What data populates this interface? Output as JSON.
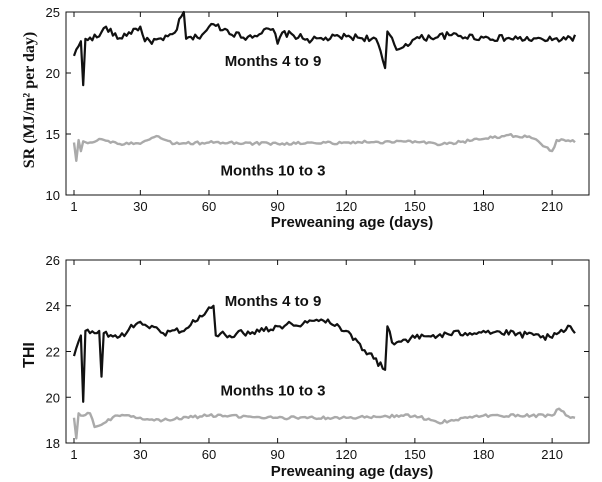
{
  "chart_data": [
    {
      "type": "line",
      "xlabel": "Preweaning age (days)",
      "ylabel": "SR (MJ/m² per day)",
      "xlim": [
        1,
        220
      ],
      "ylim": [
        10,
        25
      ],
      "xticks": [
        1,
        30,
        60,
        90,
        120,
        150,
        180,
        210
      ],
      "yticks": [
        10,
        15,
        20,
        25
      ],
      "grid": false,
      "annotations": [
        {
          "text": "Months 4 to 9",
          "x": 88,
          "y": 21.0
        },
        {
          "text": "Months 10 to 3",
          "x": 88,
          "y": 12.0
        }
      ],
      "series": [
        {
          "name": "Months 4 to 9",
          "color": "#111111",
          "base": 22.8,
          "x": [
            1,
            4,
            5,
            6,
            8,
            12,
            15,
            20,
            30,
            32,
            40,
            45,
            49,
            50,
            55,
            62,
            75,
            88,
            90,
            92,
            105,
            120,
            133,
            137,
            138,
            142,
            150,
            165,
            180,
            195,
            210,
            218
          ],
          "values": [
            21.4,
            22.6,
            19.0,
            22.8,
            22.9,
            23.0,
            23.8,
            22.8,
            23.8,
            22.6,
            22.7,
            23.3,
            25.0,
            22.8,
            22.9,
            24.0,
            22.9,
            23.6,
            22.4,
            23.3,
            22.7,
            23.0,
            22.8,
            20.4,
            23.4,
            21.9,
            22.8,
            23.1,
            22.9,
            22.8,
            22.7,
            22.9
          ]
        },
        {
          "name": "Months 10 to 3",
          "color": "#aaaaaa",
          "base": 14.3,
          "x": [
            1,
            2,
            3,
            4,
            5,
            8,
            12,
            20,
            30,
            38,
            45,
            60,
            90,
            120,
            150,
            160,
            180,
            190,
            200,
            210,
            212,
            218
          ],
          "values": [
            14.3,
            12.8,
            14.5,
            13.6,
            14.4,
            14.3,
            14.6,
            14.2,
            14.2,
            14.8,
            14.2,
            14.3,
            14.2,
            14.3,
            14.4,
            14.1,
            14.6,
            14.9,
            14.8,
            13.6,
            14.5,
            14.4
          ]
        }
      ]
    },
    {
      "type": "line",
      "xlabel": "Preweaning age (days)",
      "ylabel": "THI",
      "xlim": [
        1,
        220
      ],
      "ylim": [
        18,
        26
      ],
      "xticks": [
        1,
        30,
        60,
        90,
        120,
        150,
        180,
        210
      ],
      "yticks": [
        18,
        20,
        22,
        24,
        26
      ],
      "grid": false,
      "annotations": [
        {
          "text": "Months 4 to 9",
          "x": 88,
          "y": 24.2
        },
        {
          "text": "Months 10 to 3",
          "x": 88,
          "y": 20.3
        }
      ],
      "series": [
        {
          "name": "Months 4 to 9",
          "color": "#111111",
          "base": 22.7,
          "x": [
            1,
            4,
            5,
            6,
            8,
            12,
            13,
            14,
            20,
            30,
            40,
            50,
            62,
            63,
            75,
            90,
            112,
            120,
            137,
            138,
            140,
            150,
            180,
            210,
            218,
            220
          ],
          "values": [
            21.8,
            22.7,
            19.8,
            22.9,
            22.8,
            22.9,
            20.9,
            22.8,
            22.6,
            23.3,
            22.8,
            23.0,
            24.0,
            22.7,
            22.8,
            23.1,
            23.4,
            22.9,
            21.2,
            23.1,
            22.4,
            22.6,
            22.9,
            22.6,
            23.1,
            22.8
          ]
        },
        {
          "name": "Months 10 to 3",
          "color": "#aaaaaa",
          "base": 19.15,
          "x": [
            1,
            2,
            3,
            4,
            8,
            10,
            20,
            40,
            60,
            90,
            120,
            150,
            160,
            180,
            210,
            213,
            218,
            220
          ],
          "values": [
            19.1,
            18.2,
            19.3,
            19.2,
            19.3,
            18.7,
            19.2,
            19.0,
            19.2,
            19.1,
            19.1,
            19.2,
            18.9,
            19.2,
            19.2,
            19.5,
            19.1,
            19.1
          ]
        }
      ]
    }
  ]
}
